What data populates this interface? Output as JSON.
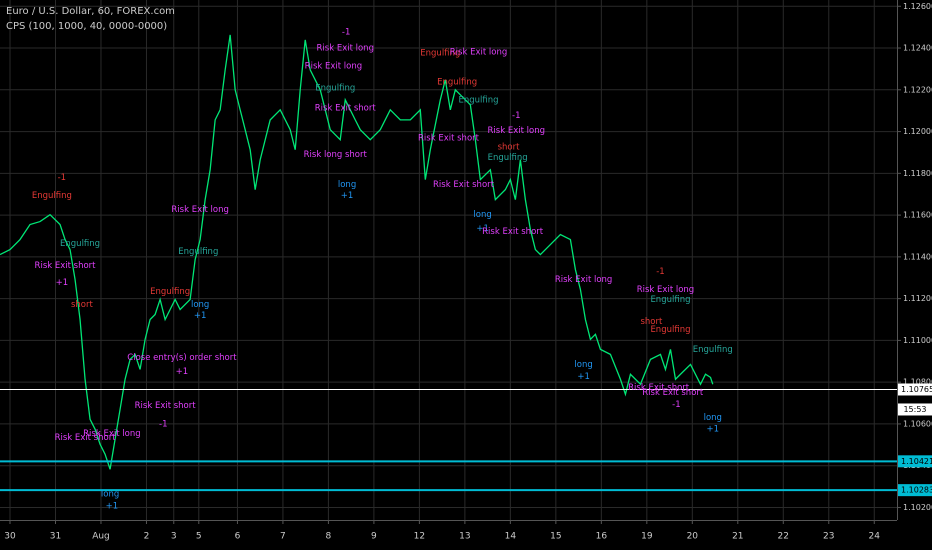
{
  "chart_data": {
    "type": "line",
    "title": "Euro / U.S. Dollar, 60, FOREX.com",
    "subtitle": "CPS (100, 1000, 40, 0000-0000)",
    "xlim": [
      -0.22,
      19.5
    ],
    "ylim": [
      1.1014,
      1.1263
    ],
    "grid": true,
    "xticks": [
      {
        "value": 0,
        "label": "30"
      },
      {
        "value": 1,
        "label": "31"
      },
      {
        "value": 2,
        "label": "Aug"
      },
      {
        "value": 3,
        "label": "2"
      },
      {
        "value": 3.6,
        "label": "3"
      },
      {
        "value": 4.15,
        "label": "5"
      },
      {
        "value": 5,
        "label": "6"
      },
      {
        "value": 6,
        "label": "7"
      },
      {
        "value": 7,
        "label": "8"
      },
      {
        "value": 8,
        "label": "9"
      },
      {
        "value": 9,
        "label": "12"
      },
      {
        "value": 10,
        "label": "13"
      },
      {
        "value": 11,
        "label": "14"
      },
      {
        "value": 12,
        "label": "15"
      },
      {
        "value": 13,
        "label": "16"
      },
      {
        "value": 14,
        "label": "19"
      },
      {
        "value": 15,
        "label": "20"
      },
      {
        "value": 16,
        "label": "21"
      },
      {
        "value": 17,
        "label": "22"
      },
      {
        "value": 18,
        "label": "23"
      },
      {
        "value": 19,
        "label": "24"
      }
    ],
    "yticks": [
      {
        "value": 1.102,
        "label": "1.10200"
      },
      {
        "value": 1.104,
        "label": "1.10400"
      },
      {
        "value": 1.106,
        "label": "1.10600"
      },
      {
        "value": 1.108,
        "label": "1.10800"
      },
      {
        "value": 1.11,
        "label": "1.11000"
      },
      {
        "value": 1.112,
        "label": "1.11200"
      },
      {
        "value": 1.114,
        "label": "1.11400"
      },
      {
        "value": 1.116,
        "label": "1.11600"
      },
      {
        "value": 1.118,
        "label": "1.11800"
      },
      {
        "value": 1.12,
        "label": "1.12000"
      },
      {
        "value": 1.122,
        "label": "1.12200"
      },
      {
        "value": 1.124,
        "label": "1.12400"
      },
      {
        "value": 1.126,
        "label": "1.12600"
      }
    ],
    "series": [
      {
        "name": "EURUSD",
        "color": "#00e676",
        "x": [
          -0.22,
          0,
          0.22,
          0.44,
          0.66,
          0.88,
          1.1,
          1.21,
          1.32,
          1.43,
          1.54,
          1.65,
          1.76,
          1.87,
          1.98,
          2.09,
          2.2,
          2.31,
          2.42,
          2.53,
          2.64,
          2.75,
          2.86,
          2.97,
          3.08,
          3.19,
          3.3,
          3.41,
          3.52,
          3.63,
          3.74,
          3.96,
          4.07,
          4.18,
          4.29,
          4.4,
          4.51,
          4.62,
          4.73,
          4.84,
          4.95,
          5.06,
          5.17,
          5.28,
          5.39,
          5.5,
          5.72,
          5.94,
          6.16,
          6.27,
          6.38,
          6.49,
          6.6,
          6.82,
          7.04,
          7.26,
          7.37,
          7.48,
          7.59,
          7.7,
          7.92,
          8.14,
          8.36,
          8.58,
          8.8,
          9.02,
          9.13,
          9.24,
          9.46,
          9.57,
          9.68,
          9.79,
          9.9,
          10.01,
          10.12,
          10.23,
          10.34,
          10.56,
          10.67,
          10.89,
          11.0,
          11.11,
          11.22,
          11.33,
          11.44,
          11.55,
          11.66,
          11.88,
          12.1,
          12.32,
          12.43,
          12.54,
          12.65,
          12.76,
          12.87,
          12.98,
          13.2,
          13.42,
          13.53,
          13.64,
          13.86,
          14.08,
          14.3,
          14.41,
          14.52,
          14.63,
          14.74,
          14.96,
          15.18,
          15.29,
          15.4,
          15.45
        ],
        "values": [
          1.11411,
          1.11435,
          1.11483,
          1.11555,
          1.11569,
          1.11602,
          1.11555,
          1.11483,
          1.11435,
          1.11292,
          1.111,
          1.10814,
          1.10622,
          1.10575,
          1.10503,
          1.10455,
          1.10383,
          1.10527,
          1.1067,
          1.10814,
          1.10909,
          1.10933,
          1.10861,
          1.11005,
          1.111,
          1.11124,
          1.11196,
          1.111,
          1.11148,
          1.11196,
          1.11148,
          1.11196,
          1.11387,
          1.11483,
          1.11674,
          1.11817,
          1.12056,
          1.12104,
          1.12295,
          1.12463,
          1.122,
          1.12104,
          1.12009,
          1.11913,
          1.11722,
          1.11865,
          1.12056,
          1.12104,
          1.12009,
          1.11913,
          1.122,
          1.12439,
          1.12295,
          1.122,
          1.12009,
          1.11961,
          1.12152,
          1.12104,
          1.12056,
          1.12009,
          1.11961,
          1.12009,
          1.12104,
          1.12056,
          1.12056,
          1.12104,
          1.1177,
          1.11913,
          1.12152,
          1.12248,
          1.12104,
          1.122,
          1.12176,
          1.12152,
          1.12128,
          1.11961,
          1.1177,
          1.11817,
          1.11674,
          1.11722,
          1.1177,
          1.11674,
          1.11865,
          1.11674,
          1.11531,
          1.11435,
          1.11411,
          1.11459,
          1.11507,
          1.11483,
          1.11339,
          1.11244,
          1.111,
          1.11005,
          1.11029,
          1.10957,
          1.10933,
          1.10814,
          1.10742,
          1.10838,
          1.1079,
          1.10909,
          1.10933,
          1.10861,
          1.10957,
          1.10814,
          1.10838,
          1.10885,
          1.1079,
          1.10838,
          1.10823,
          1.1079
        ]
      }
    ],
    "price_lines": [
      {
        "value": 1.10765,
        "label": "1.10765",
        "color": "#ffffff"
      },
      {
        "value": 1.10421,
        "label": "1.10421",
        "color": "#00bcd4"
      },
      {
        "value": 1.10283,
        "label": "1.10283",
        "color": "#00bcd4"
      }
    ],
    "countdown": "15:53",
    "annotations": [
      {
        "text": "-1",
        "x": 1.14,
        "y": 1.11779,
        "color": "#e53935"
      },
      {
        "text": "Engulfing",
        "x": 0.92,
        "y": 1.11693,
        "color": "#e53935"
      },
      {
        "text": "Engulfing",
        "x": 1.54,
        "y": 1.11464,
        "color": "#26a69a"
      },
      {
        "text": "Risk Exit short",
        "x": 1.21,
        "y": 1.11359,
        "color": "#e040fb"
      },
      {
        "text": "+1",
        "x": 1.14,
        "y": 1.11277,
        "color": "#e040fb"
      },
      {
        "text": "short",
        "x": 1.58,
        "y": 1.11172,
        "color": "#e53935"
      },
      {
        "text": "Risk Exit short",
        "x": 1.65,
        "y": 1.10536,
        "color": "#e040fb"
      },
      {
        "text": "Risk Exit long",
        "x": 2.24,
        "y": 1.10555,
        "color": "#e040fb"
      },
      {
        "text": "long",
        "x": 2.2,
        "y": 1.10264,
        "color": "#2196f3"
      },
      {
        "text": "+1",
        "x": 2.24,
        "y": 1.10207,
        "color": "#2196f3"
      },
      {
        "text": "Engulfing",
        "x": 3.52,
        "y": 1.11234,
        "color": "#e53935"
      },
      {
        "text": "Engulfing",
        "x": 4.14,
        "y": 1.11425,
        "color": "#26a69a"
      },
      {
        "text": "Risk Exit long",
        "x": 4.18,
        "y": 1.11626,
        "color": "#e040fb"
      },
      {
        "text": "long",
        "x": 4.18,
        "y": 1.11172,
        "color": "#2196f3"
      },
      {
        "text": "+1",
        "x": 4.18,
        "y": 1.1112,
        "color": "#2196f3"
      },
      {
        "text": "Close entry(s) order short",
        "x": 3.78,
        "y": 1.10919,
        "color": "#e040fb"
      },
      {
        "text": "+1",
        "x": 3.78,
        "y": 1.10852,
        "color": "#e040fb"
      },
      {
        "text": "Risk Exit short",
        "x": 3.41,
        "y": 1.10689,
        "color": "#e040fb"
      },
      {
        "text": "-1",
        "x": 3.37,
        "y": 1.10599,
        "color": "#e040fb"
      },
      {
        "text": "-1",
        "x": 7.39,
        "y": 1.12477,
        "color": "#e040fb"
      },
      {
        "text": "Risk Exit long",
        "x": 7.37,
        "y": 1.12401,
        "color": "#e040fb"
      },
      {
        "text": "Risk Exit long",
        "x": 7.11,
        "y": 1.12315,
        "color": "#e040fb"
      },
      {
        "text": "Engulfing",
        "x": 7.15,
        "y": 1.12209,
        "color": "#26a69a"
      },
      {
        "text": "Risk Exit short",
        "x": 7.37,
        "y": 1.12114,
        "color": "#e040fb"
      },
      {
        "text": "Risk long short",
        "x": 7.15,
        "y": 1.11889,
        "color": "#e040fb"
      },
      {
        "text": "long",
        "x": 7.41,
        "y": 1.11746,
        "color": "#2196f3"
      },
      {
        "text": "+1",
        "x": 7.41,
        "y": 1.11693,
        "color": "#2196f3"
      },
      {
        "text": "Engulfing",
        "x": 9.46,
        "y": 1.12377,
        "color": "#e53935"
      },
      {
        "text": "Risk Exit long",
        "x": 10.3,
        "y": 1.12381,
        "color": "#e040fb"
      },
      {
        "text": "Engulfing",
        "x": 9.83,
        "y": 1.12238,
        "color": "#e53935"
      },
      {
        "text": "Engulfing",
        "x": 10.3,
        "y": 1.12152,
        "color": "#26a69a"
      },
      {
        "text": "Risk Exit short",
        "x": 9.64,
        "y": 1.1197,
        "color": "#e040fb"
      },
      {
        "text": "Risk Exit short",
        "x": 9.97,
        "y": 1.11746,
        "color": "#e040fb"
      },
      {
        "text": "long",
        "x": 10.39,
        "y": 1.11602,
        "color": "#2196f3"
      },
      {
        "text": "+1",
        "x": 10.39,
        "y": 1.11535,
        "color": "#2196f3"
      },
      {
        "text": "-1",
        "x": 11.13,
        "y": 1.12076,
        "color": "#e040fb"
      },
      {
        "text": "Risk Exit long",
        "x": 11.13,
        "y": 1.12004,
        "color": "#e040fb"
      },
      {
        "text": "short",
        "x": 10.96,
        "y": 1.11927,
        "color": "#e53935"
      },
      {
        "text": "Engulfing",
        "x": 10.94,
        "y": 1.11875,
        "color": "#26a69a"
      },
      {
        "text": "Risk Exit short",
        "x": 11.05,
        "y": 1.11521,
        "color": "#e040fb"
      },
      {
        "text": "Risk Exit long",
        "x": 12.61,
        "y": 1.11292,
        "color": "#e040fb"
      },
      {
        "text": "long",
        "x": 12.61,
        "y": 1.10885,
        "color": "#2196f3"
      },
      {
        "text": "+1",
        "x": 12.61,
        "y": 1.10828,
        "color": "#2196f3"
      },
      {
        "text": "-1",
        "x": 14.3,
        "y": 1.1133,
        "color": "#e53935"
      },
      {
        "text": "Risk Exit long",
        "x": 14.41,
        "y": 1.11244,
        "color": "#e040fb"
      },
      {
        "text": "Engulfing",
        "x": 14.52,
        "y": 1.11196,
        "color": "#26a69a"
      },
      {
        "text": "short",
        "x": 14.1,
        "y": 1.11091,
        "color": "#e53935"
      },
      {
        "text": "Engulfing",
        "x": 14.52,
        "y": 1.11053,
        "color": "#e53935"
      },
      {
        "text": "Risk Exit short",
        "x": 14.26,
        "y": 1.10775,
        "color": "#e040fb"
      },
      {
        "text": "Risk Exit short",
        "x": 14.57,
        "y": 1.10751,
        "color": "#e040fb"
      },
      {
        "text": "-1",
        "x": 14.65,
        "y": 1.10694,
        "color": "#e040fb"
      },
      {
        "text": "Engulfing",
        "x": 15.45,
        "y": 1.10957,
        "color": "#26a69a"
      },
      {
        "text": "long",
        "x": 15.45,
        "y": 1.10632,
        "color": "#2196f3"
      },
      {
        "text": "+1",
        "x": 15.45,
        "y": 1.10575,
        "color": "#2196f3"
      }
    ]
  }
}
